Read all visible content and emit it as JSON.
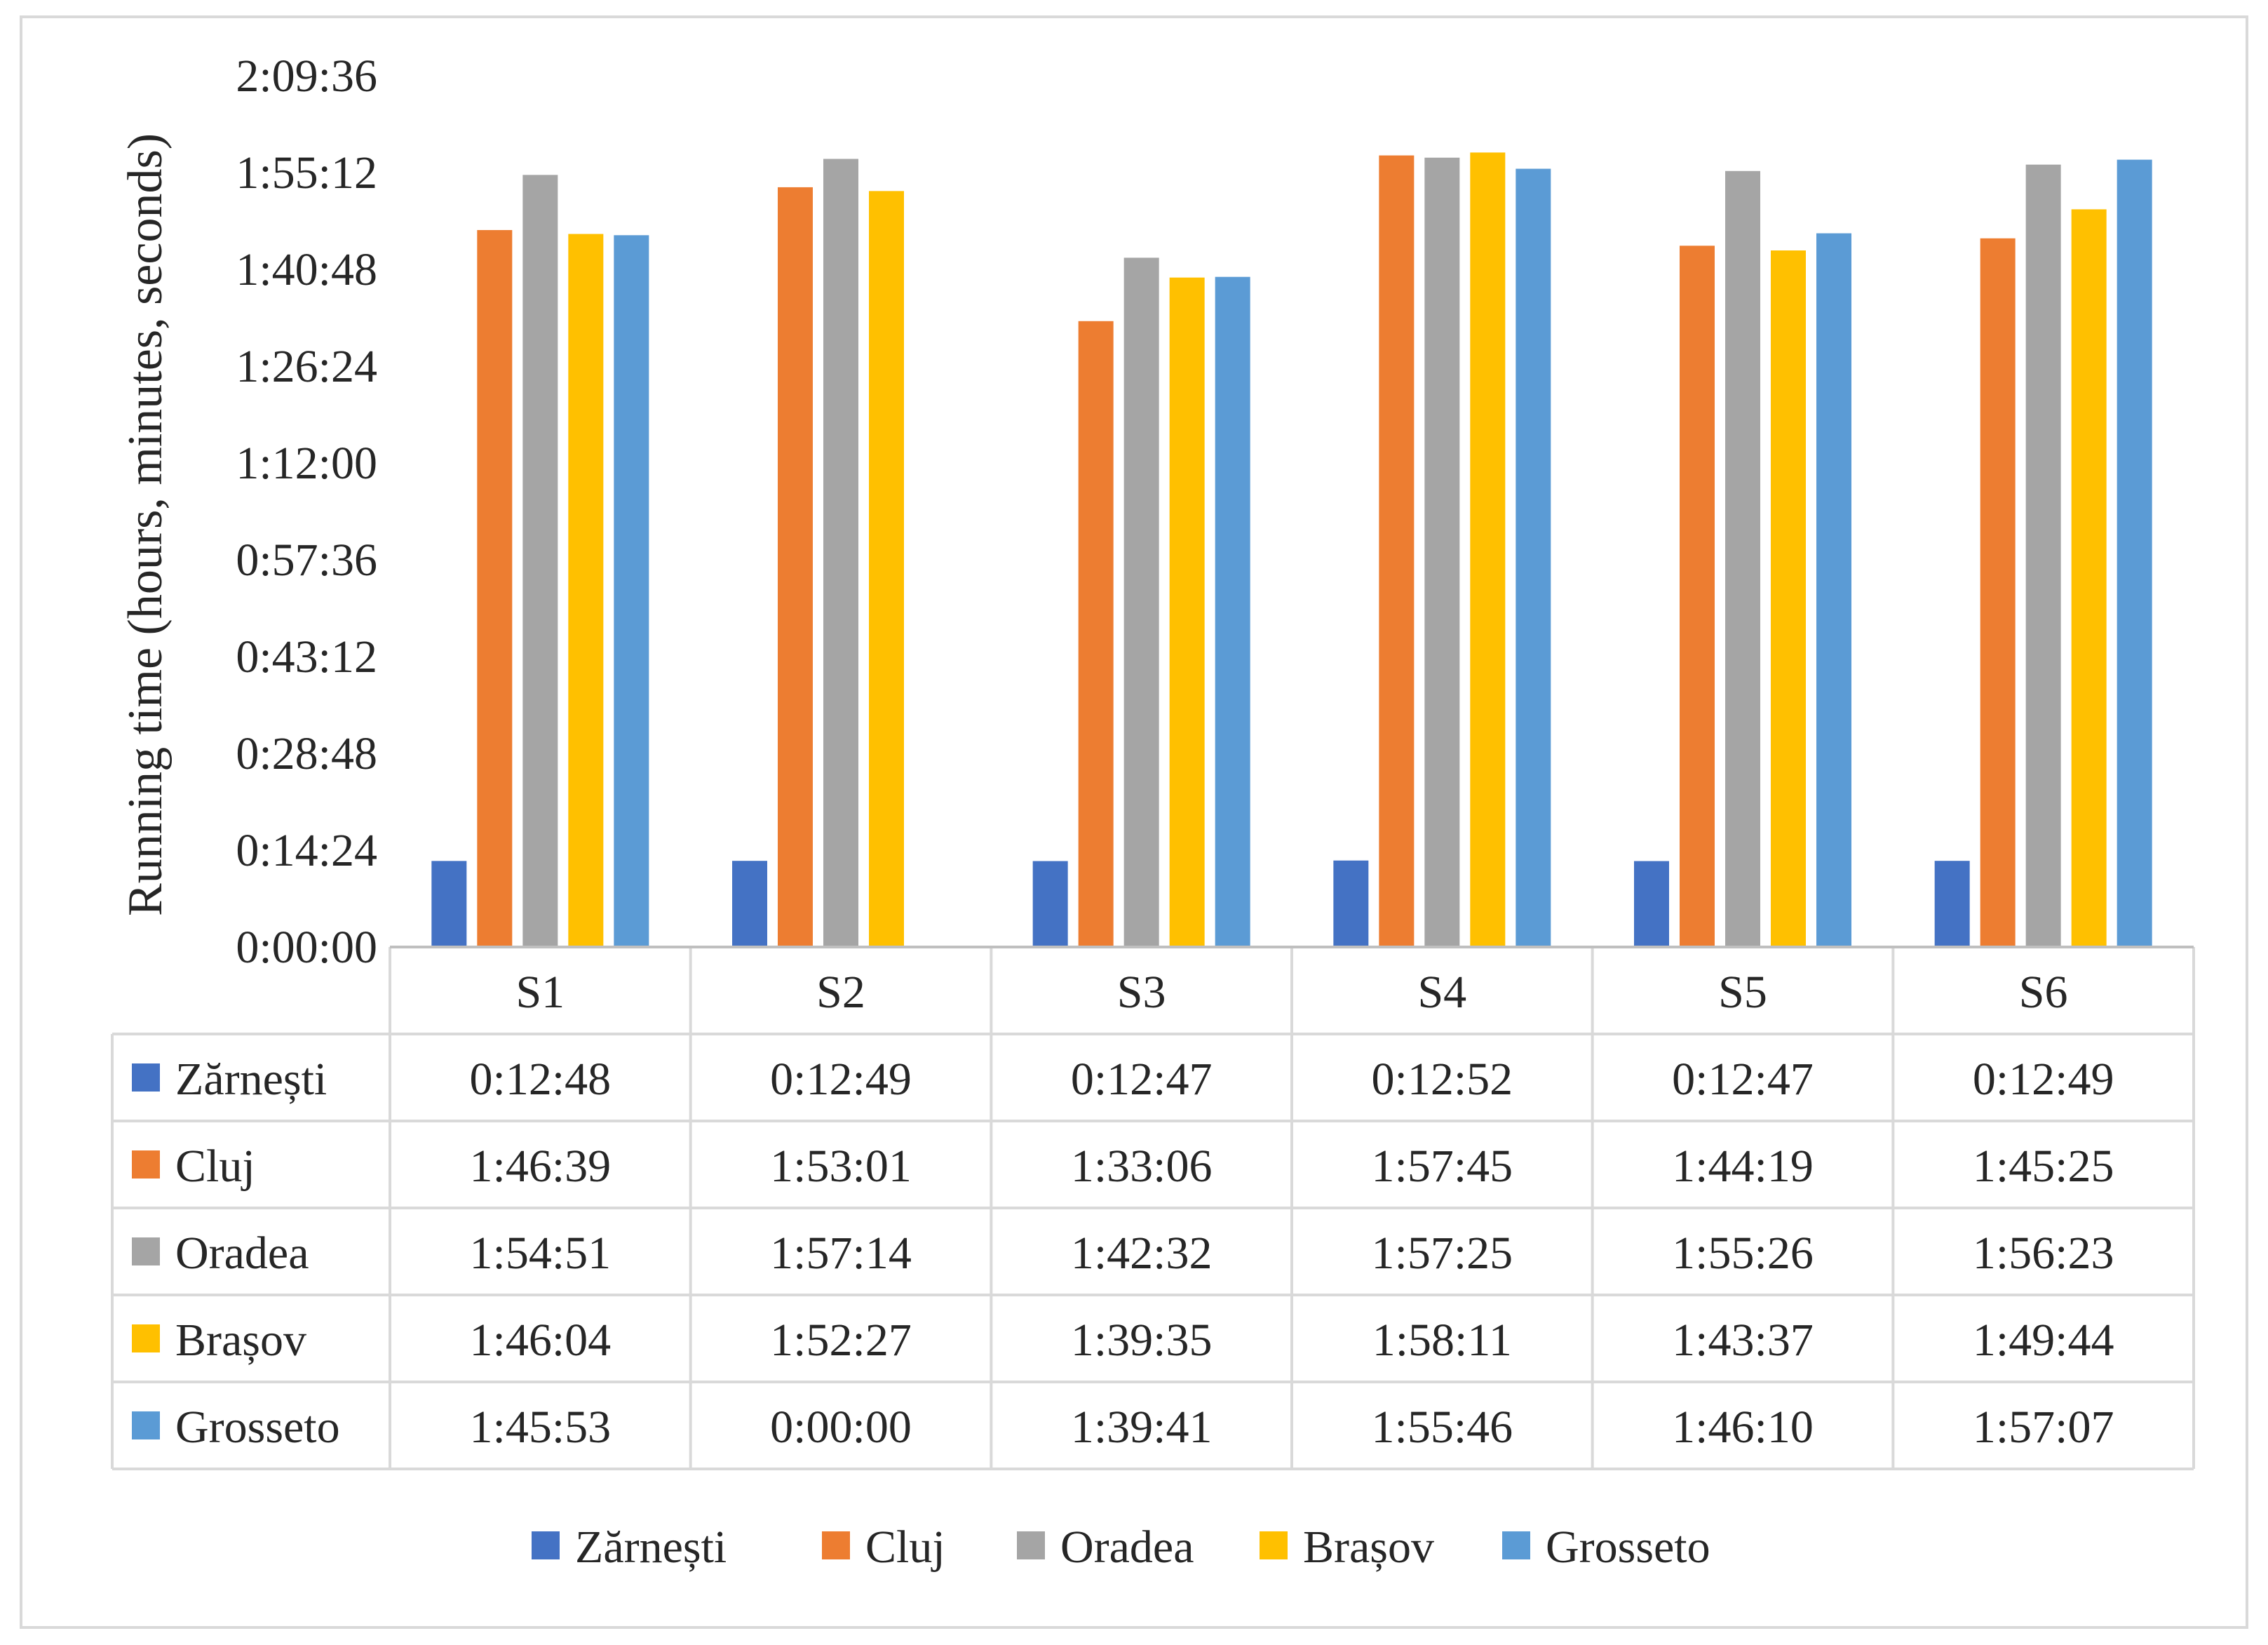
{
  "chart_data": {
    "type": "bar",
    "title": "",
    "xlabel": "",
    "ylabel": "Running time (hours, minutes, seconds)",
    "ylim_seconds": [
      0,
      7776
    ],
    "y_tick_labels": [
      "0:00:00",
      "0:14:24",
      "0:28:48",
      "0:43:12",
      "0:57:36",
      "1:12:00",
      "1:26:24",
      "1:40:48",
      "1:55:12",
      "2:09:36"
    ],
    "categories": [
      "S1",
      "S2",
      "S3",
      "S4",
      "S5",
      "S6"
    ],
    "series": [
      {
        "name": "Zărnești",
        "color": "#4472C4",
        "values": [
          "0:12:48",
          "0:12:49",
          "0:12:47",
          "0:12:52",
          "0:12:47",
          "0:12:49"
        ]
      },
      {
        "name": "Cluj",
        "color": "#ED7D31",
        "values": [
          "1:46:39",
          "1:53:01",
          "1:33:06",
          "1:57:45",
          "1:44:19",
          "1:45:25"
        ]
      },
      {
        "name": "Oradea",
        "color": "#A5A5A5",
        "values": [
          "1:54:51",
          "1:57:14",
          "1:42:32",
          "1:57:25",
          "1:55:26",
          "1:56:23"
        ]
      },
      {
        "name": "Brașov",
        "color": "#FFC000",
        "values": [
          "1:46:04",
          "1:52:27",
          "1:39:35",
          "1:58:11",
          "1:43:37",
          "1:49:44"
        ]
      },
      {
        "name": "Grosseto",
        "color": "#5B9BD5",
        "values": [
          "1:45:53",
          "0:00:00",
          "1:39:41",
          "1:55:46",
          "1:46:10",
          "1:57:07"
        ]
      }
    ],
    "legend_position": "bottom",
    "grid": false,
    "data_table": true
  }
}
